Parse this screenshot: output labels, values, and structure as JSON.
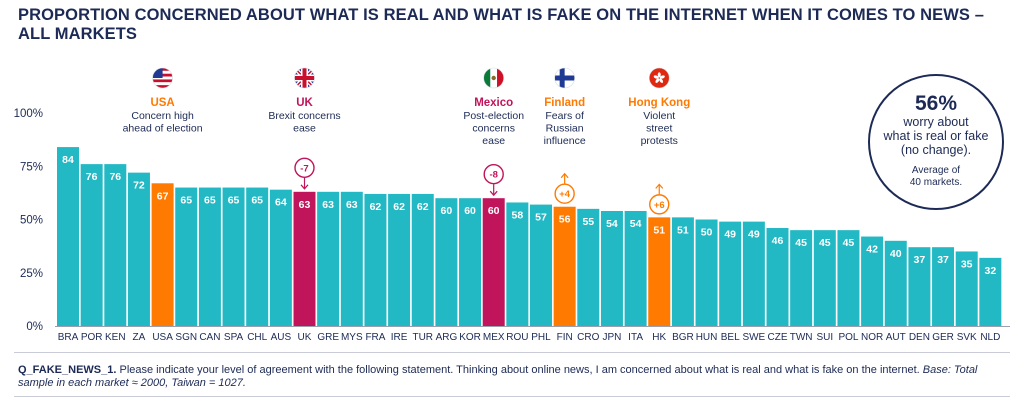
{
  "title": "PROPORTION CONCERNED ABOUT WHAT IS REAL AND WHAT IS FAKE ON THE INTERNET WHEN IT COMES TO NEWS – ALL MARKETS",
  "colors": {
    "default": "#22b8c4",
    "highlight_orange": "#ff7a00",
    "highlight_magenta": "#c0145b",
    "navy": "#1c2a55"
  },
  "chart_data": {
    "type": "bar",
    "categories": [
      "BRA",
      "POR",
      "KEN",
      "ZA",
      "USA",
      "SGN",
      "CAN",
      "SPA",
      "CHL",
      "AUS",
      "UK",
      "GRE",
      "MYS",
      "FRA",
      "IRE",
      "TUR",
      "ARG",
      "KOR",
      "MEX",
      "ROU",
      "PHL",
      "FIN",
      "CRO",
      "JPN",
      "ITA",
      "HK",
      "BGR",
      "HUN",
      "BEL",
      "SWE",
      "CZE",
      "TWN",
      "SUI",
      "POL",
      "NOR",
      "AUT",
      "DEN",
      "GER",
      "SVK",
      "NLD"
    ],
    "values": [
      84,
      76,
      76,
      72,
      67,
      65,
      65,
      65,
      65,
      64,
      63,
      63,
      63,
      62,
      62,
      62,
      60,
      60,
      60,
      58,
      57,
      56,
      55,
      54,
      54,
      51,
      51,
      50,
      49,
      49,
      46,
      45,
      45,
      45,
      42,
      40,
      37,
      37,
      35,
      32
    ],
    "ylim": [
      0,
      100
    ],
    "yticks": [
      0,
      25,
      50,
      75,
      100
    ],
    "ytick_labels": [
      "0%",
      "25%",
      "50%",
      "75%",
      "100%"
    ],
    "bar_colors": {
      "USA": "#ff7a00",
      "FIN": "#ff7a00",
      "HK": "#ff7a00",
      "UK": "#c0145b",
      "MEX": "#c0145b"
    },
    "changes": [
      {
        "category": "UK",
        "label": "-7",
        "direction": "down",
        "color": "#c0145b"
      },
      {
        "category": "MEX",
        "label": "-8",
        "direction": "down",
        "color": "#c0145b"
      },
      {
        "category": "FIN",
        "label": "+4",
        "direction": "up",
        "color": "#ff7a00"
      },
      {
        "category": "HK",
        "label": "+6",
        "direction": "up",
        "color": "#ff7a00"
      }
    ],
    "annotations": [
      {
        "category": "USA",
        "flag": "us-flag-icon",
        "country": "USA",
        "color": "#ff7a00",
        "lines": [
          "Concern high",
          "ahead of election"
        ]
      },
      {
        "category": "UK",
        "flag": "uk-flag-icon",
        "country": "UK",
        "color": "#c0145b",
        "lines": [
          "Brexit concerns",
          "ease"
        ]
      },
      {
        "category": "MEX",
        "flag": "mexico-flag-icon",
        "country": "Mexico",
        "color": "#c0145b",
        "lines": [
          "Post-election",
          "concerns",
          "ease"
        ]
      },
      {
        "category": "FIN",
        "flag": "finland-flag-icon",
        "country": "Finland",
        "color": "#ff7a00",
        "lines": [
          "Fears of",
          "Russian",
          "influence"
        ]
      },
      {
        "category": "HK",
        "flag": "hongkong-flag-icon",
        "country": "Hong Kong",
        "color": "#ff7a00",
        "lines": [
          "Violent",
          "street",
          "protests"
        ]
      }
    ],
    "callout": {
      "big": "56%",
      "lines": [
        "worry about",
        "what is real or fake",
        "(no change)."
      ],
      "small": [
        "Average of",
        "40 markets."
      ]
    }
  },
  "footnote": {
    "question_id": "Q_FAKE_NEWS_1.",
    "text": " Please indicate your level of agreement with the following statement. Thinking about online news, I am concerned about what is real and what is fake on the internet. ",
    "base": "Base: Total sample in each market ≈ 2000, Taiwan = 1027."
  }
}
